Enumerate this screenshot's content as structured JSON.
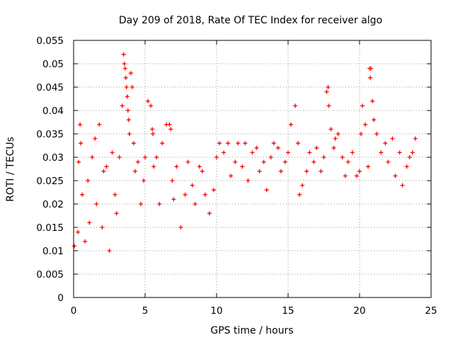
{
  "chart_data": {
    "type": "scatter",
    "title": "Day 209 of 2018, Rate Of TEC Index for receiver algo",
    "xlabel": "GPS time / hours",
    "ylabel": "ROTI / TECUs",
    "xlim": [
      0,
      25
    ],
    "ylim": [
      0,
      0.055
    ],
    "xticks": [
      0,
      5,
      10,
      15,
      20,
      25
    ],
    "yticks": [
      0,
      0.005,
      0.01,
      0.015,
      0.02,
      0.025,
      0.03,
      0.035,
      0.04,
      0.045,
      0.05,
      0.055
    ],
    "xtick_labels": [
      "0",
      "5",
      "10",
      "15",
      "20",
      "25"
    ],
    "ytick_labels": [
      "0",
      "0.005",
      "0.01",
      "0.015",
      "0.02",
      "0.025",
      "0.03",
      "0.035",
      "0.04",
      "0.045",
      "0.05",
      "0.055"
    ],
    "grid": true,
    "marker": "+",
    "series": [
      {
        "name": "ROTI",
        "color": "#ff0000",
        "x": [
          0.05,
          0.3,
          0.35,
          0.45,
          0.5,
          0.6,
          0.8,
          1.0,
          1.1,
          1.3,
          1.5,
          1.6,
          1.8,
          2.0,
          2.1,
          2.3,
          2.5,
          2.7,
          2.9,
          3.0,
          3.2,
          3.4,
          3.5,
          3.55,
          3.6,
          3.65,
          3.7,
          3.75,
          3.8,
          3.85,
          3.9,
          4.0,
          4.1,
          4.2,
          4.3,
          4.5,
          4.7,
          4.9,
          5.0,
          5.2,
          5.4,
          5.5,
          5.55,
          5.6,
          5.8,
          6.0,
          6.2,
          6.5,
          6.7,
          6.8,
          6.9,
          7.0,
          7.2,
          7.5,
          7.8,
          8.0,
          8.3,
          8.5,
          8.8,
          9.0,
          9.2,
          9.5,
          9.8,
          10.0,
          10.2,
          10.5,
          10.8,
          11.0,
          11.3,
          11.5,
          11.8,
          12.0,
          12.2,
          12.5,
          12.8,
          13.0,
          13.3,
          13.5,
          13.8,
          14.0,
          14.3,
          14.5,
          14.8,
          15.0,
          15.2,
          15.5,
          15.7,
          15.8,
          16.0,
          16.3,
          16.5,
          16.8,
          17.0,
          17.3,
          17.5,
          17.7,
          17.8,
          17.85,
          18.0,
          18.2,
          18.3,
          18.5,
          18.8,
          19.0,
          19.2,
          19.5,
          19.8,
          20.0,
          20.1,
          20.2,
          20.4,
          20.6,
          20.7,
          20.75,
          20.8,
          20.9,
          21.0,
          21.2,
          21.5,
          21.8,
          22.0,
          22.3,
          22.5,
          22.8,
          23.0,
          23.3,
          23.5,
          23.7,
          23.9
        ],
        "y": [
          0.011,
          0.014,
          0.029,
          0.037,
          0.033,
          0.022,
          0.012,
          0.025,
          0.016,
          0.03,
          0.034,
          0.02,
          0.037,
          0.015,
          0.027,
          0.028,
          0.01,
          0.031,
          0.022,
          0.018,
          0.03,
          0.041,
          0.052,
          0.05,
          0.049,
          0.047,
          0.045,
          0.043,
          0.04,
          0.038,
          0.035,
          0.048,
          0.045,
          0.033,
          0.027,
          0.029,
          0.02,
          0.025,
          0.03,
          0.042,
          0.041,
          0.036,
          0.035,
          0.028,
          0.03,
          0.02,
          0.033,
          0.037,
          0.037,
          0.036,
          0.025,
          0.021,
          0.028,
          0.015,
          0.022,
          0.029,
          0.024,
          0.02,
          0.028,
          0.027,
          0.022,
          0.018,
          0.023,
          0.03,
          0.033,
          0.031,
          0.033,
          0.026,
          0.029,
          0.033,
          0.028,
          0.033,
          0.025,
          0.031,
          0.032,
          0.027,
          0.029,
          0.023,
          0.03,
          0.033,
          0.032,
          0.027,
          0.029,
          0.031,
          0.037,
          0.041,
          0.033,
          0.022,
          0.024,
          0.027,
          0.031,
          0.029,
          0.032,
          0.027,
          0.03,
          0.044,
          0.045,
          0.041,
          0.036,
          0.032,
          0.034,
          0.035,
          0.03,
          0.026,
          0.029,
          0.031,
          0.026,
          0.027,
          0.035,
          0.041,
          0.037,
          0.028,
          0.049,
          0.047,
          0.049,
          0.042,
          0.038,
          0.035,
          0.031,
          0.033,
          0.029,
          0.034,
          0.026,
          0.031,
          0.024,
          0.028,
          0.03,
          0.031,
          0.034
        ]
      }
    ]
  }
}
